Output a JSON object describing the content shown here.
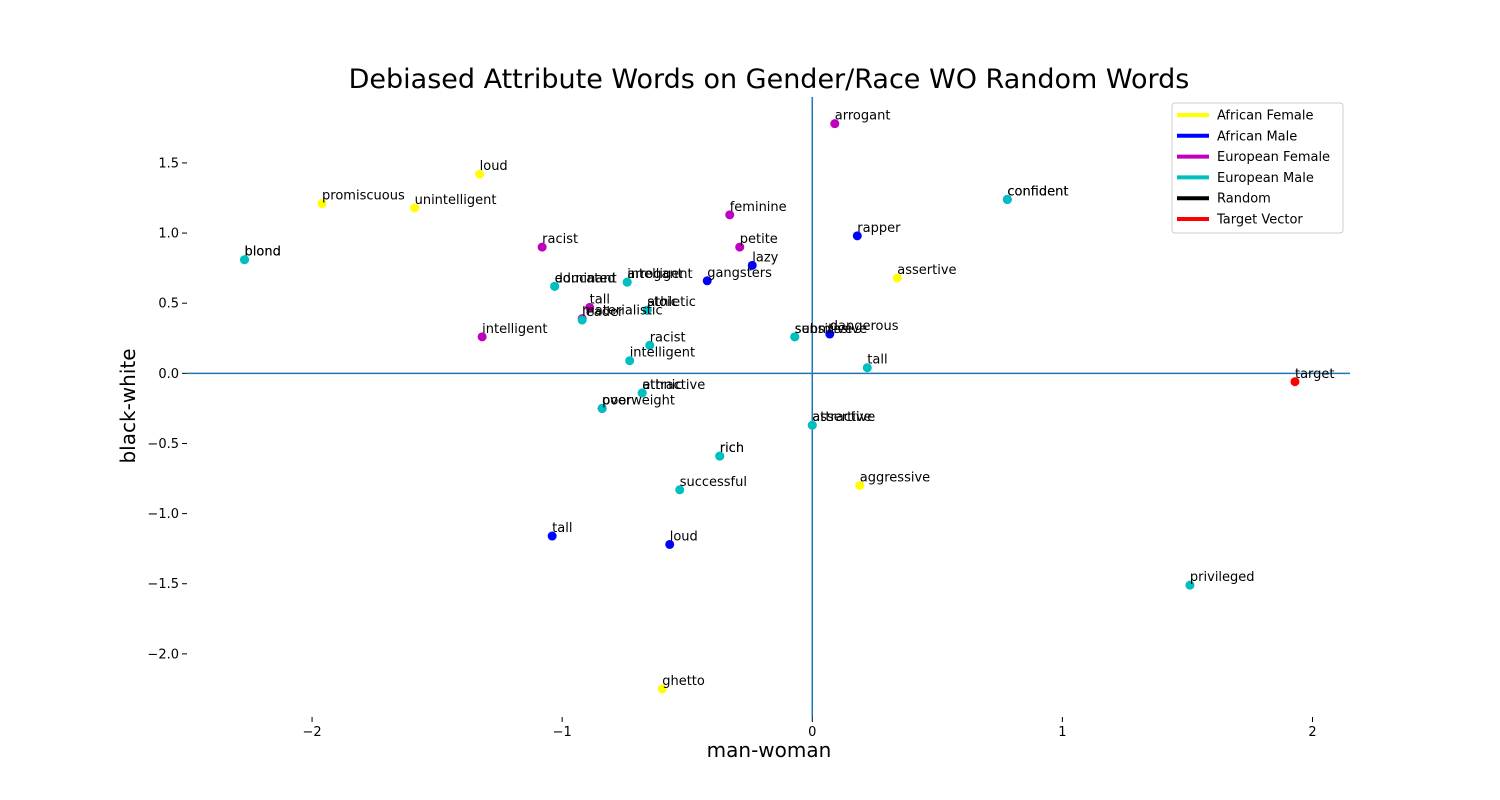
{
  "chart_data": {
    "type": "scatter",
    "title": "Debiased Attribute Words on Gender/Race WO Random Words",
    "xlabel": "man-woman",
    "ylabel": "black-white",
    "xlim": [
      -2.5,
      2.15
    ],
    "ylim": [
      -2.45,
      1.97
    ],
    "xticks": [
      -2,
      -1,
      0,
      1,
      2
    ],
    "xtick_labels": [
      "−2",
      "−1",
      "0",
      "1",
      "2"
    ],
    "yticks": [
      -2.0,
      -1.5,
      -1.0,
      -0.5,
      0.0,
      0.5,
      1.0,
      1.5
    ],
    "ytick_labels": [
      "−2.0",
      "−1.5",
      "−1.0",
      "−0.5",
      "0.0",
      "0.5",
      "1.0",
      "1.5"
    ],
    "grid": false,
    "reference_lines": {
      "x": 0,
      "y": 0
    },
    "legend_position": "top-right",
    "legend": [
      {
        "label": "African Female",
        "color": "#ffff00"
      },
      {
        "label": "African Male",
        "color": "#0000ff"
      },
      {
        "label": "European Female",
        "color": "#bf00bf"
      },
      {
        "label": "European Male",
        "color": "#00bfbf"
      },
      {
        "label": "Random",
        "color": "#000000"
      },
      {
        "label": "Target Vector",
        "color": "#ff0000"
      }
    ],
    "points": [
      {
        "label": "loud",
        "x": -1.33,
        "y": 1.42,
        "group": "African Female"
      },
      {
        "label": "promiscuous",
        "x": -1.96,
        "y": 1.21,
        "group": "African Female"
      },
      {
        "label": "unintelligent",
        "x": -1.59,
        "y": 1.18,
        "group": "African Female"
      },
      {
        "label": "assertive",
        "x": 0.34,
        "y": 0.68,
        "group": "African Female"
      },
      {
        "label": "aggressive",
        "x": 0.19,
        "y": -0.8,
        "group": "African Female"
      },
      {
        "label": "ghetto",
        "x": -0.6,
        "y": -2.25,
        "group": "African Female"
      },
      {
        "label": "confident",
        "x": 0.78,
        "y": 1.24,
        "group": "African Male"
      },
      {
        "label": "rapper",
        "x": 0.18,
        "y": 0.98,
        "group": "African Male"
      },
      {
        "label": "lazy",
        "x": -0.24,
        "y": 0.77,
        "group": "African Male"
      },
      {
        "label": "gangsters",
        "x": -0.42,
        "y": 0.66,
        "group": "African Male"
      },
      {
        "label": "athletic",
        "x": -0.66,
        "y": 0.45,
        "group": "African Male"
      },
      {
        "label": "dangerous",
        "x": 0.07,
        "y": 0.28,
        "group": "African Male"
      },
      {
        "label": "poor",
        "x": -0.84,
        "y": -0.25,
        "group": "African Male"
      },
      {
        "label": "tall",
        "x": -1.04,
        "y": -1.16,
        "group": "African Male"
      },
      {
        "label": "loud",
        "x": -0.57,
        "y": -1.22,
        "group": "African Male"
      },
      {
        "label": "arrogant",
        "x": 0.09,
        "y": 1.78,
        "group": "European Female"
      },
      {
        "label": "feminine",
        "x": -0.33,
        "y": 1.13,
        "group": "European Female"
      },
      {
        "label": "racist",
        "x": -1.08,
        "y": 0.9,
        "group": "European Female"
      },
      {
        "label": "petite",
        "x": -0.29,
        "y": 0.9,
        "group": "European Female"
      },
      {
        "label": "tall",
        "x": -0.89,
        "y": 0.47,
        "group": "European Female"
      },
      {
        "label": "materialistic",
        "x": -0.92,
        "y": 0.39,
        "group": "European Female"
      },
      {
        "label": "intelligent",
        "x": -1.32,
        "y": 0.26,
        "group": "European Female"
      },
      {
        "label": "confident",
        "x": 0.78,
        "y": 1.24,
        "group": "European Male"
      },
      {
        "label": "blond",
        "x": -2.27,
        "y": 0.81,
        "group": "European Male"
      },
      {
        "label": "blond",
        "x": -2.27,
        "y": 0.81,
        "group": "European Male"
      },
      {
        "label": "educated",
        "x": -1.03,
        "y": 0.62,
        "group": "European Male"
      },
      {
        "label": "dominant",
        "x": -1.03,
        "y": 0.62,
        "group": "European Male"
      },
      {
        "label": "arrogant",
        "x": -0.74,
        "y": 0.65,
        "group": "European Male"
      },
      {
        "label": "intelligent",
        "x": -0.74,
        "y": 0.65,
        "group": "European Male"
      },
      {
        "label": "stoic",
        "x": -0.66,
        "y": 0.45,
        "group": "European Male"
      },
      {
        "label": "leader",
        "x": -0.92,
        "y": 0.38,
        "group": "European Male"
      },
      {
        "label": "racist",
        "x": -0.65,
        "y": 0.2,
        "group": "European Male"
      },
      {
        "label": "intelligent",
        "x": -0.73,
        "y": 0.09,
        "group": "European Male"
      },
      {
        "label": "submissive",
        "x": -0.07,
        "y": 0.26,
        "group": "European Male"
      },
      {
        "label": "sensitive",
        "x": -0.07,
        "y": 0.26,
        "group": "European Male"
      },
      {
        "label": "tall",
        "x": 0.22,
        "y": 0.04,
        "group": "European Male"
      },
      {
        "label": "attractive",
        "x": -0.68,
        "y": -0.14,
        "group": "European Male"
      },
      {
        "label": "ethnic",
        "x": -0.68,
        "y": -0.14,
        "group": "European Male"
      },
      {
        "label": "overweight",
        "x": -0.84,
        "y": -0.25,
        "group": "European Male"
      },
      {
        "label": "assertive",
        "x": 0.0,
        "y": -0.37,
        "group": "European Male"
      },
      {
        "label": "attractive",
        "x": 0.0,
        "y": -0.37,
        "group": "European Male"
      },
      {
        "label": "rich",
        "x": -0.37,
        "y": -0.59,
        "group": "European Male"
      },
      {
        "label": "rich",
        "x": -0.37,
        "y": -0.59,
        "group": "European Male"
      },
      {
        "label": "successful",
        "x": -0.53,
        "y": -0.83,
        "group": "European Male"
      },
      {
        "label": "privileged",
        "x": 1.51,
        "y": -1.51,
        "group": "European Male"
      },
      {
        "label": "target",
        "x": 1.93,
        "y": -0.06,
        "group": "Target Vector"
      }
    ]
  }
}
